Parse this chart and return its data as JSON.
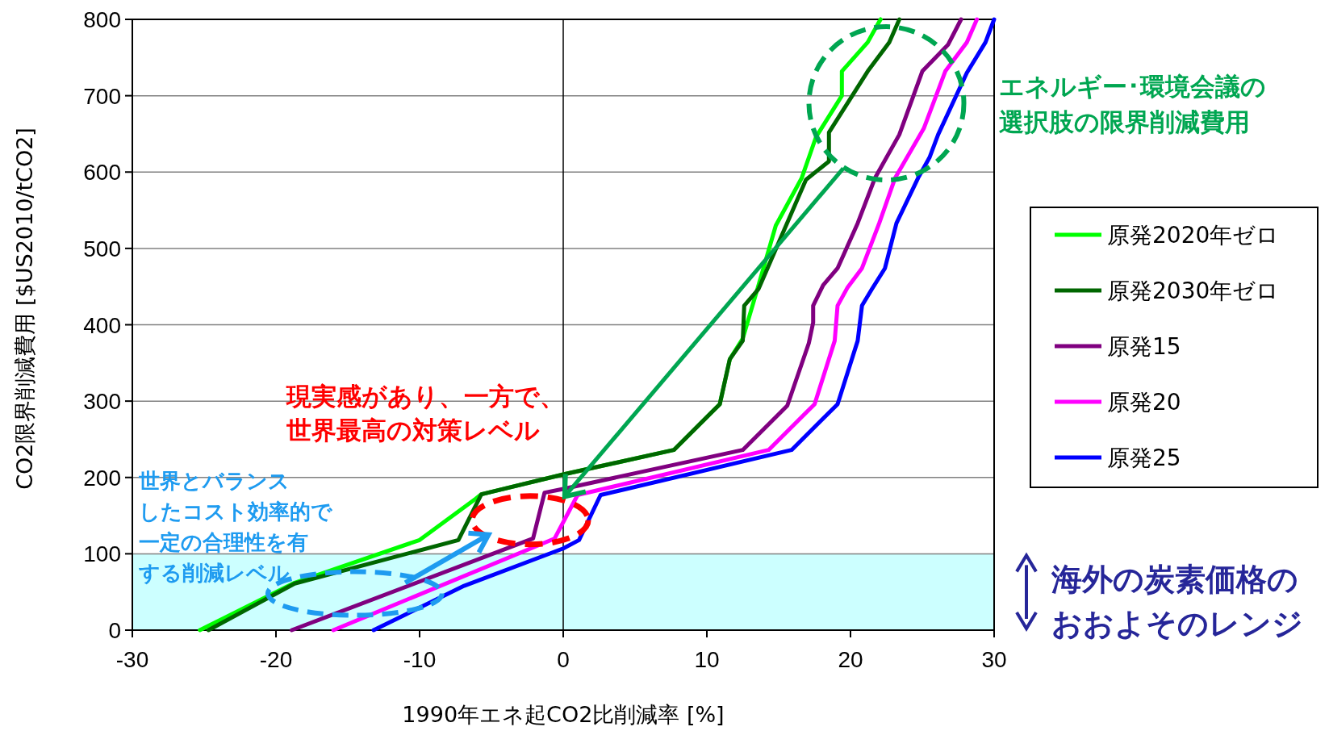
{
  "chart_data": {
    "type": "line",
    "xlabel": "1990年エネ起CO2比削減率 [%]",
    "ylabel": "CO2限界削減費用 [$US2010/tCO2]",
    "xlim": [
      -30,
      30
    ],
    "ylim": [
      0,
      800
    ],
    "xticks": [
      -30,
      -20,
      -10,
      0,
      10,
      20,
      30
    ],
    "yticks": [
      0,
      100,
      200,
      300,
      400,
      500,
      600,
      700,
      800
    ],
    "grid": "y",
    "legend": "right",
    "ref_lines": [
      {
        "axis": "x",
        "value": 0,
        "color": "#000000"
      }
    ],
    "bands": [
      {
        "axis": "y",
        "from": 0,
        "to": 100,
        "color": "#ccffff",
        "label": "海外の炭素価格のおおよそのレンジ"
      }
    ],
    "annotations": [
      "現実感があり、一方で、世界最高の対策レベル",
      "世界とバランスしたコスト効率的で一定の合理性を有する削減レベル",
      "エネルギー･環境会議の選択肢の限界削減費用"
    ],
    "series": [
      {
        "name": "原発2020年ゼロ",
        "color": "#00ff00",
        "x": [
          -25.3,
          -18.7,
          -10,
          -6.1,
          -5.7,
          0,
          7.7,
          10.9,
          11.6,
          12.5,
          13.6,
          14.8,
          16.6,
          17.6,
          19.4,
          19.4,
          21.2,
          22,
          22.1
        ],
        "values": [
          0,
          62,
          118,
          172,
          178,
          204,
          236,
          296,
          355,
          382,
          452,
          530,
          592,
          646,
          700,
          732,
          770,
          797,
          800
        ]
      },
      {
        "name": "原発2030年ゼロ",
        "color": "#006600",
        "x": [
          -24.7,
          -18.7,
          -7.3,
          -5.7,
          0,
          7.7,
          10.9,
          11.6,
          12.5,
          12.6,
          13.6,
          16.9,
          18.5,
          18.5,
          21.2,
          22.7,
          23.4
        ],
        "values": [
          0,
          61,
          118,
          178,
          204,
          236,
          296,
          355,
          379,
          425,
          447,
          590,
          614,
          652,
          732,
          770,
          800
        ]
      },
      {
        "name": "原発15",
        "color": "#800080",
        "x": [
          -18.9,
          -2.1,
          -1.3,
          0,
          12.5,
          15.6,
          17.1,
          17.4,
          17.4,
          18.1,
          19.1,
          20.5,
          21.7,
          23.4,
          25,
          26.8,
          27.7
        ],
        "values": [
          0,
          120,
          180,
          185,
          236,
          294,
          376,
          403,
          425,
          452,
          474,
          533,
          592,
          649,
          732,
          767,
          800
        ]
      },
      {
        "name": "原発20",
        "color": "#ff00ff",
        "x": [
          -16,
          -0.6,
          1,
          14.3,
          17.5,
          18.9,
          19.1,
          19.8,
          20.8,
          22,
          23.1,
          25.1,
          26.6,
          28.1,
          28.8
        ],
        "values": [
          0,
          120,
          177,
          236,
          296,
          379,
          425,
          449,
          474,
          533,
          592,
          657,
          732,
          770,
          800
        ]
      },
      {
        "name": "原発25",
        "color": "#0000ff",
        "x": [
          -13.2,
          -6.9,
          0,
          1.1,
          2.6,
          15.9,
          19.1,
          20.5,
          20.8,
          21.5,
          22.4,
          23.2,
          24.7,
          25.5,
          26.1,
          28.1,
          29.4,
          30
        ],
        "values": [
          0,
          58,
          107,
          118,
          177,
          236,
          296,
          379,
          425,
          447,
          474,
          533,
          592,
          619,
          649,
          730,
          770,
          800
        ]
      }
    ]
  }
}
